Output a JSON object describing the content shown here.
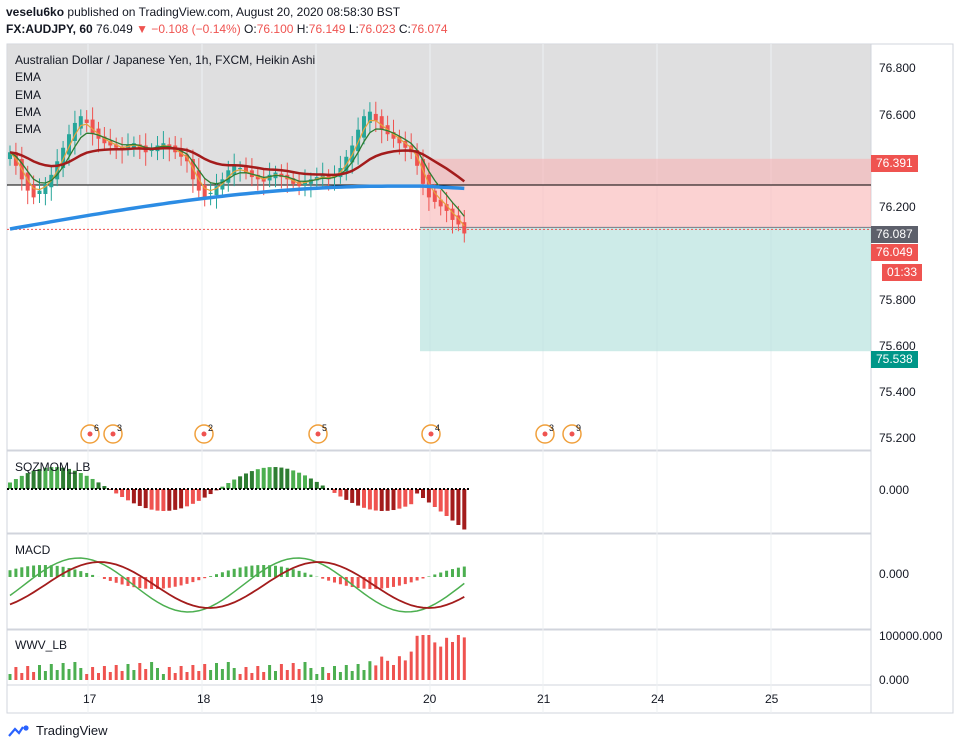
{
  "header": {
    "author": "veselu6ko",
    "published_text": "published on TradingView.com, August 20, 2020 08:58:30 BST",
    "symbol": "FX:AUDJPY, 60",
    "last": "76.049",
    "change": "▼ −0.108 (−0.14%)",
    "o_label": "O:",
    "o": "76.100",
    "h_label": "H:",
    "h": "76.149",
    "l_label": "L:",
    "l": "76.023",
    "c_label": "C:",
    "c": "76.074"
  },
  "pane_title": "Australian Dollar / Japanese Yen, 1h, FXCM, Heikin Ashi",
  "ema_labels": [
    "EMA",
    "EMA",
    "EMA",
    "EMA"
  ],
  "indicators": {
    "sqzmom": "SQZMOM_LB",
    "macd": "MACD",
    "wwv": "WWV_LB"
  },
  "price_axis": [
    "76.800",
    "76.600",
    "76.200",
    "75.800",
    "75.600",
    "75.400",
    "75.200"
  ],
  "badges": {
    "stop": "76.391",
    "entry": "76.087",
    "last": "76.049",
    "timer": "01:33",
    "target": "75.538"
  },
  "ind_axis": {
    "sqz_zero": "0.000",
    "macd_zero": "0.000",
    "wwv_top": "100000.000",
    "wwv_zero": "0.000"
  },
  "date_labels": [
    "17",
    "18",
    "19",
    "20",
    "21",
    "24",
    "25"
  ],
  "event_counts": [
    "6",
    "3",
    "2",
    "5",
    "4",
    "3",
    "9"
  ],
  "footer": {
    "brand": "TradingView"
  },
  "colors": {
    "up": "#26a69a",
    "down": "#ef5350",
    "ema_fast": "#e6a23c",
    "ema_mid": "#2e7d32",
    "ema_slow": "#a31c1c",
    "ema_long": "#2c8ce4",
    "stop_zone": "#f8b4b4",
    "target_zone": "#b2e0dc",
    "highlight_zone": "#d9d9db"
  },
  "chart_data": {
    "type": "candlestick",
    "interval": "1h",
    "style": "Heikin Ashi",
    "ylim": [
      75.1,
      76.9
    ],
    "x_categories": [
      "17",
      "18",
      "19",
      "20",
      "21",
      "24",
      "25"
    ],
    "position": {
      "entry": 76.087,
      "stop": 76.391,
      "target": 75.538
    },
    "candles_close": [
      76.42,
      76.36,
      76.3,
      76.25,
      76.22,
      76.25,
      76.28,
      76.32,
      76.38,
      76.44,
      76.5,
      76.55,
      76.58,
      76.55,
      76.5,
      76.48,
      76.46,
      76.45,
      76.44,
      76.43,
      76.45,
      76.46,
      76.44,
      76.42,
      76.43,
      76.45,
      76.46,
      76.44,
      76.42,
      76.4,
      76.38,
      76.3,
      76.25,
      76.22,
      76.24,
      76.27,
      76.3,
      76.34,
      76.36,
      76.35,
      76.33,
      76.31,
      76.3,
      76.29,
      76.32,
      76.33,
      76.31,
      76.3,
      76.28,
      76.27,
      76.29,
      76.3,
      76.31,
      76.32,
      76.3,
      76.32,
      76.35,
      76.4,
      76.45,
      76.52,
      76.58,
      76.6,
      76.56,
      76.52,
      76.5,
      76.48,
      76.46,
      76.44,
      76.42,
      76.36,
      76.28,
      76.22,
      76.2,
      76.18,
      76.16,
      76.12,
      76.1,
      76.06
    ],
    "ema_fast_close": 76.09,
    "ema_long_close": 76.27
  }
}
